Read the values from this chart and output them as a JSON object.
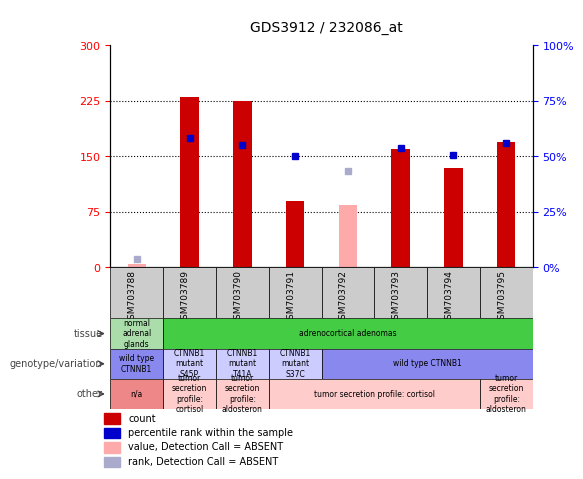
{
  "title": "GDS3912 / 232086_at",
  "samples": [
    "GSM703788",
    "GSM703789",
    "GSM703790",
    "GSM703791",
    "GSM703792",
    "GSM703793",
    "GSM703794",
    "GSM703795"
  ],
  "count_values": [
    null,
    230,
    225,
    90,
    null,
    160,
    135,
    170
  ],
  "count_absent": [
    5,
    null,
    null,
    null,
    85,
    null,
    null,
    null
  ],
  "percentile_values": [
    null,
    175,
    165,
    150,
    null,
    162,
    152,
    168
  ],
  "percentile_absent": [
    12,
    null,
    null,
    null,
    130,
    null,
    null,
    null
  ],
  "ylim": [
    0,
    300
  ],
  "y_ticks": [
    0,
    75,
    150,
    225,
    300
  ],
  "y_tick_labels": [
    "0",
    "75",
    "150",
    "225",
    "300"
  ],
  "y2_ticks": [
    0,
    25,
    50,
    75,
    100
  ],
  "y2_tick_labels": [
    "0%",
    "25%",
    "50%",
    "75%",
    "100%"
  ],
  "bar_color": "#cc0000",
  "bar_absent_color": "#ffaaaa",
  "dot_color": "#0000cc",
  "dot_absent_color": "#aaaacc",
  "tissue_row": {
    "label": "tissue",
    "cells": [
      {
        "text": "normal\nadrenal\nglands",
        "span": 1,
        "color": "#aaddaa"
      },
      {
        "text": "adrenocortical adenomas",
        "span": 7,
        "color": "#44cc44"
      }
    ]
  },
  "genotype_row": {
    "label": "genotype/variation",
    "cells": [
      {
        "text": "wild type\nCTNNB1",
        "span": 1,
        "color": "#8888ee"
      },
      {
        "text": "CTNNB1\nmutant\nS45P",
        "span": 1,
        "color": "#ccccff"
      },
      {
        "text": "CTNNB1\nmutant\nT41A",
        "span": 1,
        "color": "#ccccff"
      },
      {
        "text": "CTNNB1\nmutant\nS37C",
        "span": 1,
        "color": "#ccccff"
      },
      {
        "text": "wild type CTNNB1",
        "span": 4,
        "color": "#8888ee"
      }
    ]
  },
  "other_row": {
    "label": "other",
    "cells": [
      {
        "text": "n/a",
        "span": 1,
        "color": "#ee8888"
      },
      {
        "text": "tumor\nsecretion\nprofile:\ncortisol",
        "span": 1,
        "color": "#ffcccc"
      },
      {
        "text": "tumor\nsecretion\nprofile:\naldosteron",
        "span": 1,
        "color": "#ffcccc"
      },
      {
        "text": "tumor secretion profile: cortisol",
        "span": 4,
        "color": "#ffcccc"
      },
      {
        "text": "tumor\nsecretion\nprofile:\naldosteron",
        "span": 1,
        "color": "#ffcccc"
      }
    ]
  },
  "legend_items": [
    {
      "color": "#cc0000",
      "label": "count"
    },
    {
      "color": "#0000cc",
      "label": "percentile rank within the sample"
    },
    {
      "color": "#ffaaaa",
      "label": "value, Detection Call = ABSENT"
    },
    {
      "color": "#aaaacc",
      "label": "rank, Detection Call = ABSENT"
    }
  ],
  "left_label_color": "#444444",
  "arrow_color": "#444444"
}
